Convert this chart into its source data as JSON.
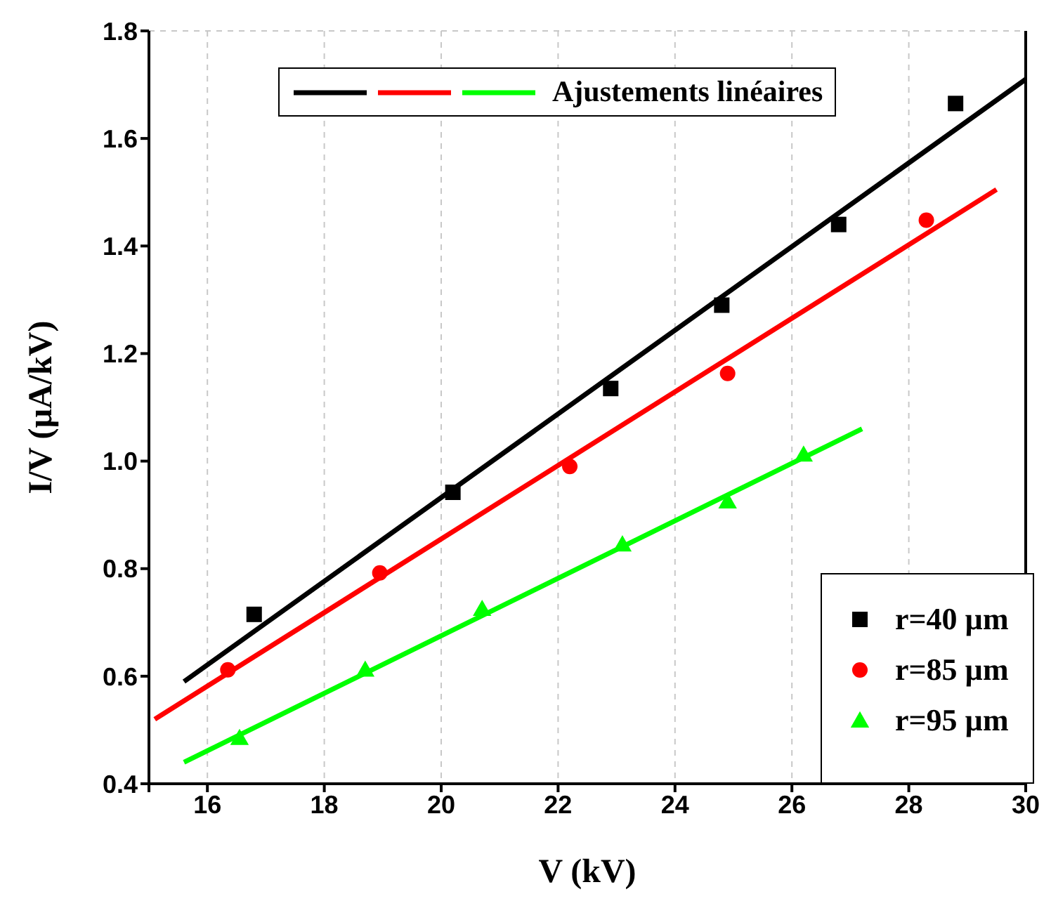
{
  "chart_data": {
    "type": "scatter",
    "xlabel": "V (kV)",
    "ylabel": "I/V (µA/kV)",
    "legend_title": "Ajustements linéaires",
    "series": [
      {
        "name": "r=40 µm",
        "color": "#000000",
        "marker": "square",
        "x": [
          16.8,
          20.2,
          22.9,
          24.8,
          26.8,
          28.8
        ],
        "values": [
          0.715,
          0.942,
          1.135,
          1.29,
          1.44,
          1.665
        ]
      },
      {
        "name": "r=85 µm",
        "color": "#ff0000",
        "marker": "circle",
        "x": [
          16.35,
          18.95,
          22.2,
          24.9,
          28.3
        ],
        "values": [
          0.612,
          0.792,
          0.99,
          1.163,
          1.448
        ]
      },
      {
        "name": "r=95 µm",
        "color": "#00ff00",
        "marker": "triangle",
        "x": [
          16.55,
          18.7,
          20.7,
          23.1,
          24.9,
          26.2
        ],
        "values": [
          0.485,
          0.612,
          0.725,
          0.845,
          0.925,
          1.012
        ]
      },
      {
        "type": "line",
        "color": "#000000",
        "marker": "none",
        "x": [
          15.6,
          30
        ],
        "values": [
          0.59,
          1.71
        ]
      },
      {
        "type": "line",
        "color": "#ff0000",
        "marker": "none",
        "x": [
          15.1,
          29.5
        ],
        "values": [
          0.52,
          1.505
        ]
      },
      {
        "type": "line",
        "color": "#00ff00",
        "marker": "none",
        "x": [
          15.6,
          27.2
        ],
        "values": [
          0.44,
          1.06
        ]
      }
    ],
    "xlim": [
      15,
      30
    ],
    "xticks": [
      {
        "value": 15,
        "label": null
      },
      16,
      18,
      20,
      22,
      24,
      26,
      28,
      30
    ],
    "ylim": [
      0.4,
      1.8
    ],
    "yticks": [
      0.4,
      0.6,
      0.8,
      {
        "value": 1,
        "label": "1.0"
      },
      1.2,
      1.4,
      1.6,
      1.8
    ],
    "grid": true,
    "legend": "bottom right",
    "line_style": "solid"
  }
}
